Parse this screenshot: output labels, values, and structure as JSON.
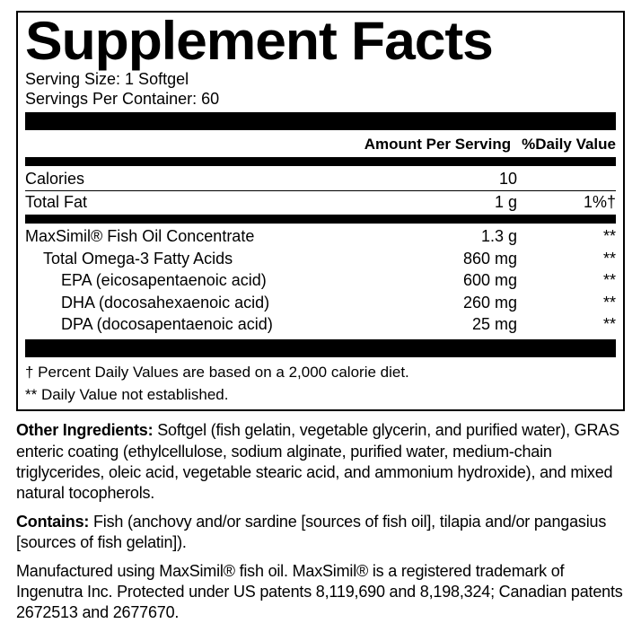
{
  "title": "Supplement Facts",
  "serving_size": "Serving Size: 1 Softgel",
  "servings_per_container": "Servings Per Container: 60",
  "header_amount": "Amount Per Serving",
  "header_dv": "%Daily Value",
  "rows": {
    "calories": {
      "name": "Calories",
      "amount": "10",
      "dv": ""
    },
    "totalfat": {
      "name": "Total Fat",
      "amount": "1 g",
      "dv": "1%†"
    },
    "fishoil": {
      "name": "MaxSimil® Fish Oil Concentrate",
      "amount": "1.3 g",
      "dv": "**"
    },
    "omega3": {
      "name": "Total Omega-3 Fatty Acids",
      "amount": "860 mg",
      "dv": "**"
    },
    "epa": {
      "name": "EPA (eicosapentaenoic acid)",
      "amount": "600 mg",
      "dv": "**"
    },
    "dha": {
      "name": "DHA (docosahexaenoic acid)",
      "amount": "260 mg",
      "dv": "**"
    },
    "dpa": {
      "name": "DPA (docosapentaenoic acid)",
      "amount": "25 mg",
      "dv": "**"
    }
  },
  "footnote1": "† Percent Daily Values are based on a 2,000 calorie diet.",
  "footnote2": "** Daily Value not established.",
  "other_ing_label": "Other Ingredients:",
  "other_ing_text": " Softgel (fish gelatin, vegetable glycerin, and purified water), GRAS enteric coating (ethylcellulose, sodium alginate, purified water, medium-chain triglycerides, oleic acid, vegetable stearic acid, and ammonium hydroxide), and mixed natural tocopherols.",
  "contains_label": "Contains:",
  "contains_text": " Fish (anchovy and/or sardine [sources of fish oil], tilapia and/or pangasius [sources of fish gelatin]).",
  "mfr_text": "Manufactured using MaxSimil® fish oil. MaxSimil® is a registered trademark of Ingenutra Inc. Protected under US patents 8,119,690 and 8,198,324; Canadian patents 2672513 and 2677670."
}
